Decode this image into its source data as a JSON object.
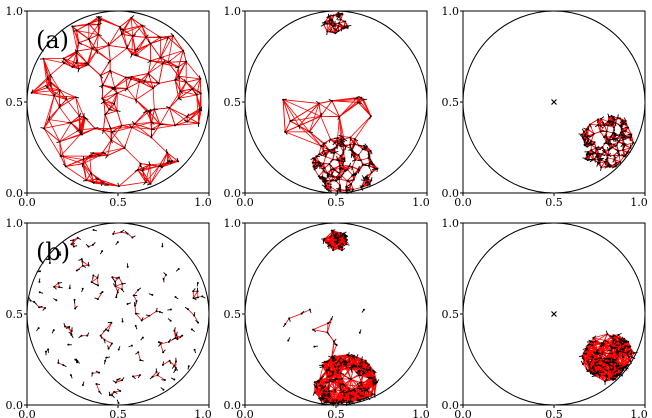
{
  "figure": {
    "panel_label_a": "(a)",
    "panel_label_b": "(b)"
  },
  "chart_data": [
    {
      "panel": "a1",
      "type": "scatter",
      "network": "delaunay",
      "xlim": [
        0,
        1
      ],
      "ylim": [
        0,
        1
      ],
      "xticks": [
        "0.0",
        "0.5",
        "1.0"
      ],
      "yticks": [
        "0.0",
        "0.5",
        "1.0"
      ],
      "boundary": "unit-circle",
      "agents": "uniform-disk",
      "colors": {
        "edges": "#ff0000",
        "agents": "#000000",
        "boundary": "#000000"
      }
    },
    {
      "panel": "a2",
      "type": "scatter",
      "network": "delaunay",
      "xlim": [
        0,
        1
      ],
      "ylim": [
        0,
        1
      ],
      "xticks": [
        "0.0",
        "0.5",
        "1.0"
      ],
      "yticks": [
        "0.0",
        "0.5",
        "1.0"
      ],
      "boundary": "unit-circle",
      "agents": "two-clusters",
      "clusters": [
        {
          "x": 0.55,
          "y": 0.15,
          "r": 0.18
        },
        {
          "x": 0.5,
          "y": 0.93,
          "r": 0.07
        }
      ],
      "colors": {
        "edges": "#ff0000",
        "agents": "#000000",
        "boundary": "#000000"
      }
    },
    {
      "panel": "a3",
      "type": "scatter",
      "network": "delaunay",
      "xlim": [
        0,
        1
      ],
      "ylim": [
        0,
        1
      ],
      "xticks": [
        "0.0",
        "0.5",
        "1.0"
      ],
      "yticks": [
        "0.0",
        "0.5",
        "1.0"
      ],
      "boundary": "unit-circle",
      "agents": "one-cluster",
      "clusters": [
        {
          "x": 0.8,
          "y": 0.28,
          "r": 0.16
        }
      ],
      "center_marker": {
        "x": 0.5,
        "y": 0.5
      },
      "colors": {
        "edges": "#ff0000",
        "agents": "#000000",
        "boundary": "#000000"
      }
    },
    {
      "panel": "b1",
      "type": "scatter",
      "network": "proximity",
      "xlim": [
        0,
        1
      ],
      "ylim": [
        0,
        1
      ],
      "xticks": [
        "0.0",
        "0.5",
        "1.0"
      ],
      "yticks": [
        "0.0",
        "0.5",
        "1.0"
      ],
      "boundary": "unit-circle",
      "agents": "uniform-disk",
      "colors": {
        "edges": "#ff0000",
        "agents": "#000000",
        "boundary": "#000000"
      }
    },
    {
      "panel": "b2",
      "type": "scatter",
      "network": "proximity",
      "xlim": [
        0,
        1
      ],
      "ylim": [
        0,
        1
      ],
      "xticks": [
        "0.0",
        "0.5",
        "1.0"
      ],
      "yticks": [
        "0.0",
        "0.5",
        "1.0"
      ],
      "boundary": "unit-circle",
      "agents": "two-clusters",
      "clusters": [
        {
          "x": 0.55,
          "y": 0.12,
          "r": 0.18
        },
        {
          "x": 0.5,
          "y": 0.9,
          "r": 0.07
        }
      ],
      "colors": {
        "edges": "#ff0000",
        "agents": "#000000",
        "boundary": "#000000"
      }
    },
    {
      "panel": "b3",
      "type": "scatter",
      "network": "proximity",
      "xlim": [
        0,
        1
      ],
      "ylim": [
        0,
        1
      ],
      "xticks": [
        "0.0",
        "0.5",
        "1.0"
      ],
      "yticks": [
        "0.0",
        "0.5",
        "1.0"
      ],
      "boundary": "unit-circle",
      "agents": "one-cluster",
      "clusters": [
        {
          "x": 0.8,
          "y": 0.26,
          "r": 0.15
        }
      ],
      "center_marker": {
        "x": 0.5,
        "y": 0.5
      },
      "colors": {
        "edges": "#ff0000",
        "agents": "#000000",
        "boundary": "#000000"
      }
    }
  ]
}
